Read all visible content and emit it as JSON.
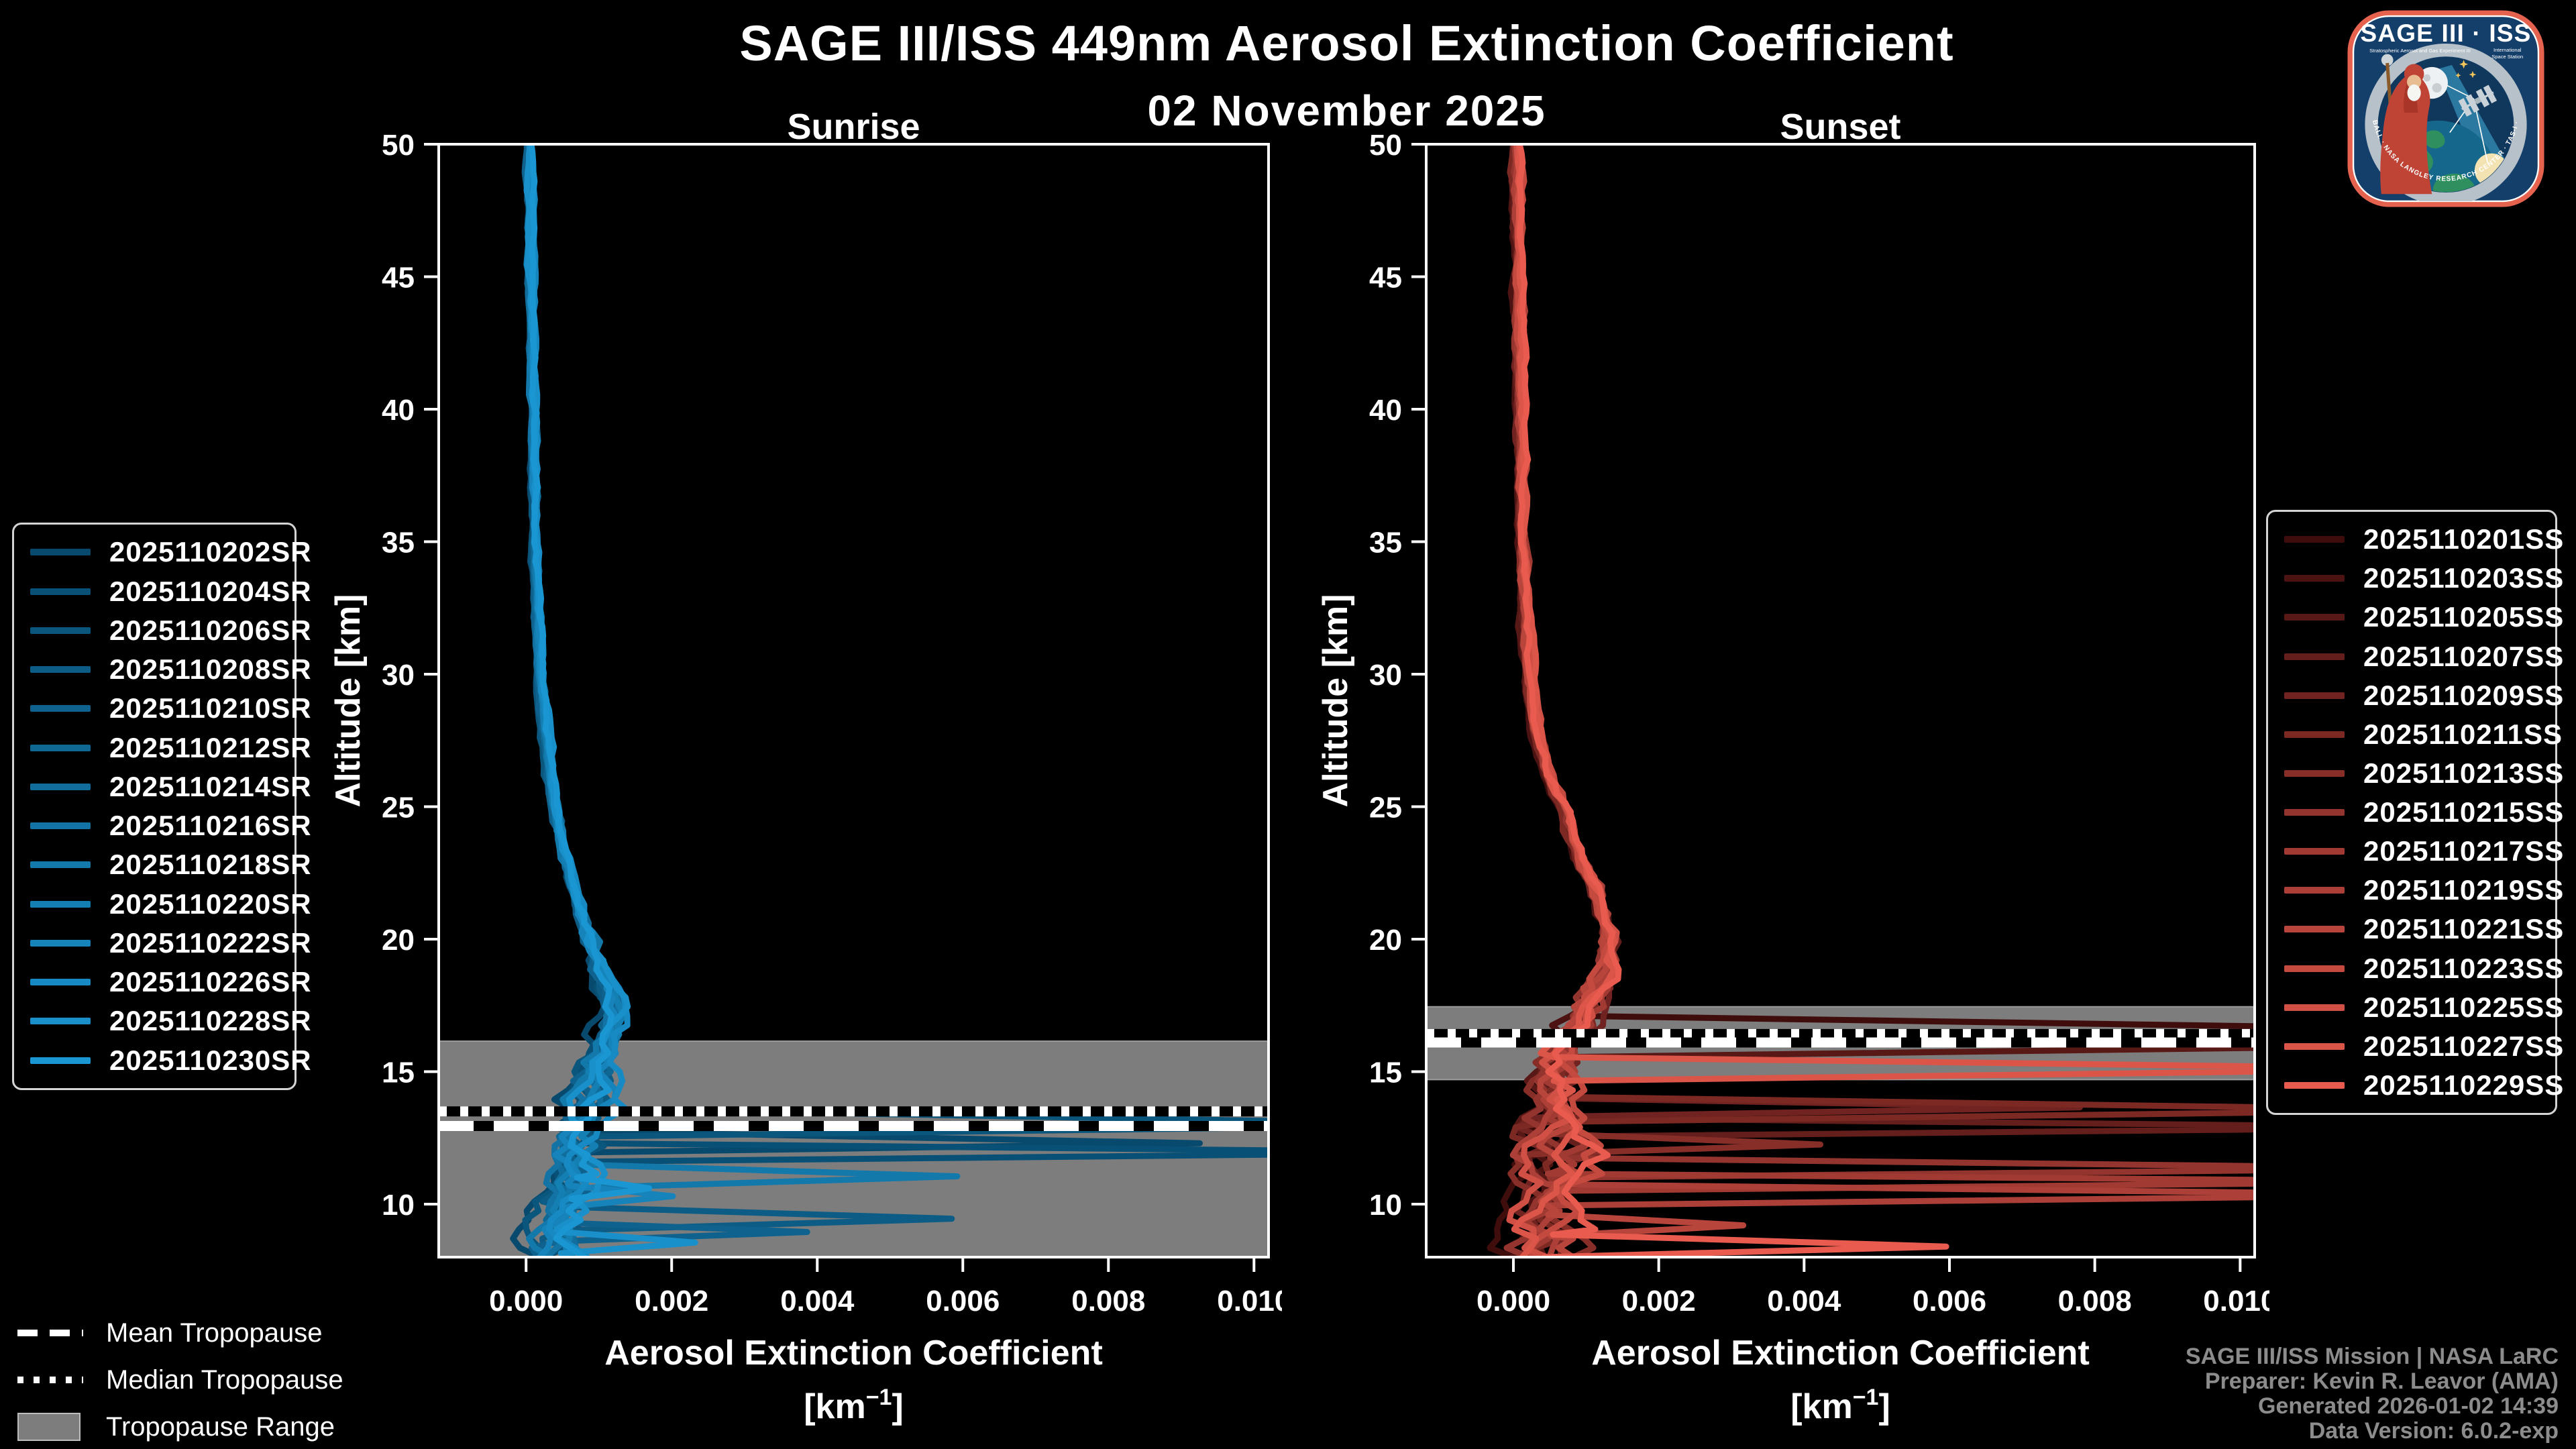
{
  "header": {
    "title": "SAGE III/ISS 449nm Aerosol Extinction Coefficient",
    "date": "02 November 2025"
  },
  "tropo_legend": {
    "mean_label": "Mean Tropopause",
    "median_label": "Median Tropopause",
    "range_label": "Tropopause Range",
    "band_color": "#7d7d7d",
    "line_color": "#ffffff"
  },
  "credits": {
    "line1": "SAGE III/ISS Mission | NASA LaRC",
    "line2": "Preparer: Kevin R. Leavor (AMA)",
    "line3": "Generated 2026-01-02 14:39",
    "line4": "Data Version: 6.0.2-exp"
  },
  "logo": {
    "title": "SAGE III · ISS",
    "sub_left": "Stratospheric Aerosol and Gas Experiment III",
    "sub_right_1": "International",
    "sub_right_2": "Space Station",
    "arc": "BALL · NASA LANGLEY RESEARCH CENTER · TAS-I · ESA",
    "border_color": "#e5624f",
    "field_color": "#143f6a"
  },
  "colors": {
    "background": "#000000",
    "text": "#ffffff",
    "frame": "#ffffff",
    "credits_text": "#8c8c8c"
  },
  "chart_data": [
    {
      "type": "line",
      "title": "Sunrise",
      "xlabel": "Aerosol Extinction Coefficient",
      "xlabel_unit": {
        "pre": "[km",
        "sup": "−1",
        "post": "]"
      },
      "ylabel": "Altitude [km]",
      "xlim": [
        -0.0012,
        0.0102
      ],
      "ylim": [
        8,
        50
      ],
      "grid": false,
      "xticks": {
        "values": [
          0.0,
          0.002,
          0.004,
          0.006,
          0.008,
          0.01
        ],
        "labels": [
          "0.000",
          "0.002",
          "0.004",
          "0.006",
          "0.008",
          "0.010"
        ]
      },
      "yticks": {
        "values": [
          50,
          45,
          40,
          35,
          30,
          25,
          20,
          15,
          10
        ],
        "labels": [
          "50",
          "45",
          "40",
          "35",
          "30",
          "25",
          "20",
          "15",
          "10"
        ]
      },
      "tropopause": {
        "range_top": 16.15,
        "range_bottom": 8,
        "mean": 12.95,
        "median": 13.5
      },
      "base_profile": {
        "alt": [
          50,
          45,
          40,
          35,
          32,
          30,
          28,
          26,
          24,
          22,
          21,
          20,
          19,
          18,
          17.5,
          17,
          16,
          15,
          14,
          13,
          12,
          11,
          10,
          9,
          8
        ],
        "val": [
          5e-05,
          7e-05,
          0.0001,
          0.00013,
          0.00017,
          0.0002,
          0.00026,
          0.00034,
          0.00047,
          0.00065,
          0.00075,
          0.00088,
          0.001,
          0.00113,
          0.00118,
          0.00115,
          0.00102,
          0.0009,
          0.00082,
          0.00075,
          0.0007,
          0.00065,
          0.0006,
          0.0005,
          0.00045
        ]
      },
      "noise_scale": 1.0,
      "series": [
        {
          "name": "2025110202SR",
          "color": "#084A6E",
          "seed": 11,
          "spikes": [
            [
              12.75,
              12.3,
              11.95,
              0.0092
            ]
          ]
        },
        {
          "name": "2025110204SR",
          "color": "#095076",
          "seed": 23,
          "spikes": [
            [
              12.3,
              11.95,
              11.6,
              0.013
            ]
          ]
        },
        {
          "name": "2025110206SR",
          "color": "#0B567D",
          "seed": 37,
          "spikes": [
            [
              13.6,
              13.0,
              12.55,
              0.013
            ]
          ]
        },
        {
          "name": "2025110208SR",
          "color": "#0C5C85",
          "seed": 41,
          "spikes": [
            [
              9.9,
              9.45,
              9.0,
              0.0059
            ]
          ]
        },
        {
          "name": "2025110210SR",
          "color": "#0E628D",
          "seed": 53,
          "spikes": [
            [
              9.3,
              8.95,
              8.6,
              0.0039
            ]
          ]
        },
        {
          "name": "2025110212SR",
          "color": "#0F6794",
          "seed": 67,
          "spikes": []
        },
        {
          "name": "2025110214SR",
          "color": "#106D9C",
          "seed": 71,
          "spikes": []
        },
        {
          "name": "2025110216SR",
          "color": "#1273A4",
          "seed": 83,
          "spikes": []
        },
        {
          "name": "2025110218SR",
          "color": "#1379AB",
          "seed": 97,
          "spikes": [
            [
              11.5,
              11.05,
              10.6,
              0.0059
            ]
          ]
        },
        {
          "name": "2025110220SR",
          "color": "#147FB3",
          "seed": 101,
          "spikes": []
        },
        {
          "name": "2025110222SR",
          "color": "#1684BB",
          "seed": 113,
          "spikes": [
            [
              10.7,
              10.3,
              9.9,
              0.0021
            ]
          ]
        },
        {
          "name": "2025110226SR",
          "color": "#178AC3",
          "seed": 127,
          "spikes": []
        },
        {
          "name": "2025110228SR",
          "color": "#1990CA",
          "seed": 131,
          "spikes": [
            [
              8.95,
              8.55,
              8.15,
              0.0023
            ]
          ]
        },
        {
          "name": "2025110230SR",
          "color": "#1A96D2",
          "seed": 139,
          "spikes": [
            [
              11.0,
              10.6,
              10.2,
              0.0017
            ]
          ]
        }
      ]
    },
    {
      "type": "line",
      "title": "Sunset",
      "xlabel": "Aerosol Extinction Coefficient",
      "xlabel_unit": {
        "pre": "[km",
        "sup": "−1",
        "post": "]"
      },
      "ylabel": "Altitude [km]",
      "xlim": [
        -0.0012,
        0.0102
      ],
      "ylim": [
        8,
        50
      ],
      "grid": false,
      "xticks": {
        "values": [
          0.0,
          0.002,
          0.004,
          0.006,
          0.008,
          0.01
        ],
        "labels": [
          "0.000",
          "0.002",
          "0.004",
          "0.006",
          "0.008",
          "0.010"
        ]
      },
      "yticks": {
        "values": [
          50,
          45,
          40,
          35,
          30,
          25,
          20,
          15,
          10
        ],
        "labels": [
          "50",
          "45",
          "40",
          "35",
          "30",
          "25",
          "20",
          "15",
          "10"
        ]
      },
      "tropopause": {
        "range_top": 17.45,
        "range_bottom": 14.7,
        "mean": 16.1,
        "median": 16.42
      },
      "base_profile": {
        "alt": [
          50,
          45,
          40,
          35,
          32,
          30,
          28,
          26,
          25,
          24,
          23,
          22,
          21,
          20,
          19,
          18,
          17,
          16,
          15,
          14,
          13,
          12,
          11,
          10,
          9,
          8
        ],
        "val": [
          4e-05,
          6e-05,
          9e-05,
          0.00012,
          0.00016,
          0.0002,
          0.0003,
          0.0005,
          0.0007,
          0.0008,
          0.0009,
          0.0011,
          0.0012,
          0.0013,
          0.0013,
          0.0011,
          0.0009,
          0.0007,
          0.0006,
          0.00058,
          0.00055,
          0.00055,
          0.0005,
          0.0005,
          0.00045,
          0.0004
        ]
      },
      "noise_scale": 1.3,
      "series": [
        {
          "name": "2025110201SS",
          "color": "#400D0D",
          "seed": 149,
          "spikes": [
            [
              17.1,
              16.6,
              16.2,
              0.013
            ]
          ]
        },
        {
          "name": "2025110203SS",
          "color": "#4C1312",
          "seed": 151,
          "spikes": []
        },
        {
          "name": "2025110205SS",
          "color": "#581816",
          "seed": 157,
          "spikes": [
            [
              16.5,
              16.0,
              15.55,
              0.013
            ]
          ]
        },
        {
          "name": "2025110207SS",
          "color": "#641E1B",
          "seed": 163,
          "spikes": [
            [
              13.25,
              12.9,
              12.55,
              0.013
            ]
          ]
        },
        {
          "name": "2025110209SS",
          "color": "#702320",
          "seed": 167,
          "spikes": [
            [
              14.0,
              13.65,
              13.3,
              0.0078
            ]
          ]
        },
        {
          "name": "2025110211SS",
          "color": "#7C2924",
          "seed": 173,
          "spikes": [
            [
              14.05,
              13.55,
              13.1,
              0.013
            ]
          ]
        },
        {
          "name": "2025110213SS",
          "color": "#882E29",
          "seed": 179,
          "spikes": [
            [
              12.65,
              12.25,
              11.9,
              0.0043
            ]
          ]
        },
        {
          "name": "2025110215SS",
          "color": "#94342E",
          "seed": 181,
          "spikes": [
            [
              11.75,
              11.35,
              11.0,
              0.013
            ]
          ]
        },
        {
          "name": "2025110217SS",
          "color": "#A03A32",
          "seed": 191,
          "spikes": [
            [
              11.15,
              10.85,
              10.5,
              0.013
            ]
          ]
        },
        {
          "name": "2025110219SS",
          "color": "#AC3F37",
          "seed": 193,
          "spikes": [
            [
              10.75,
              10.35,
              9.95,
              0.013
            ]
          ]
        },
        {
          "name": "2025110221SS",
          "color": "#B8453C",
          "seed": 197,
          "spikes": [
            [
              9.6,
              9.2,
              8.8,
              0.0031
            ]
          ]
        },
        {
          "name": "2025110223SS",
          "color": "#C44A40",
          "seed": 199,
          "spikes": []
        },
        {
          "name": "2025110225SS",
          "color": "#D05045",
          "seed": 211,
          "spikes": []
        },
        {
          "name": "2025110227SS",
          "color": "#DC5549",
          "seed": 223,
          "spikes": [
            [
              15.55,
              15.1,
              14.65,
              0.013
            ]
          ]
        },
        {
          "name": "2025110229SS",
          "color": "#E85B4E",
          "seed": 227,
          "spikes": [
            [
              8.85,
              8.4,
              8.0,
              0.0059
            ]
          ]
        }
      ]
    }
  ]
}
